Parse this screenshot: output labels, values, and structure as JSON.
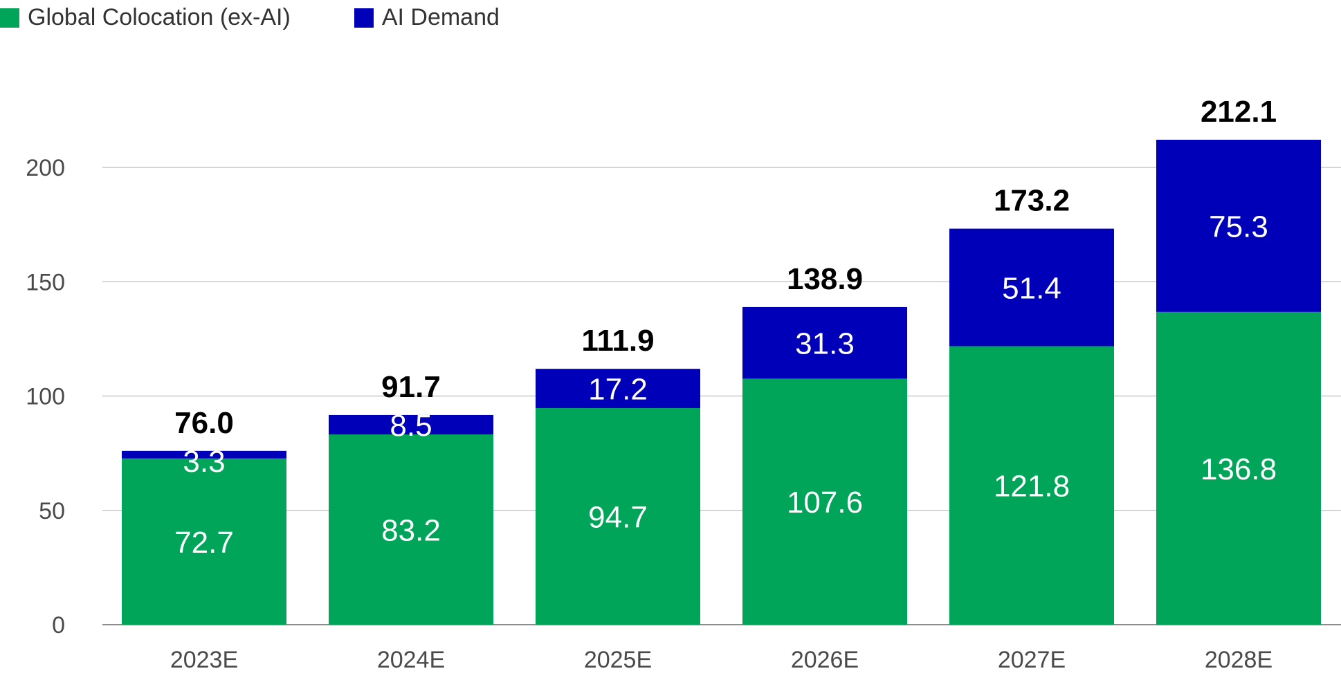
{
  "chart_data": {
    "type": "bar",
    "stacked": true,
    "categories": [
      "2023E",
      "2024E",
      "2025E",
      "2026E",
      "2027E",
      "2028E"
    ],
    "series": [
      {
        "name": "Global Colocation (ex-AI)",
        "color": "#00A55A",
        "values": [
          72.7,
          83.2,
          94.7,
          107.6,
          121.8,
          136.8
        ],
        "labels": [
          "72.7",
          "83.2",
          "94.7",
          "107.6",
          "121.8",
          "136.8"
        ]
      },
      {
        "name": "AI Demand",
        "color": "#0000B8",
        "values": [
          3.3,
          8.5,
          17.2,
          31.3,
          51.4,
          75.3
        ],
        "labels": [
          "3.3",
          "8.5",
          "17.2",
          "31.3",
          "51.4",
          "75.3"
        ]
      }
    ],
    "totals": [
      76.0,
      91.7,
      111.9,
      138.9,
      173.2,
      212.1
    ],
    "total_labels": [
      "76.0",
      "91.7",
      "111.9",
      "138.9",
      "173.2",
      "212.1"
    ],
    "yticks": [
      0,
      50,
      100,
      150,
      200
    ],
    "ytick_labels": [
      "0",
      "50",
      "100",
      "150",
      "200"
    ],
    "ylim": [
      0,
      250
    ],
    "grid": true,
    "legend_position": "top-left"
  }
}
